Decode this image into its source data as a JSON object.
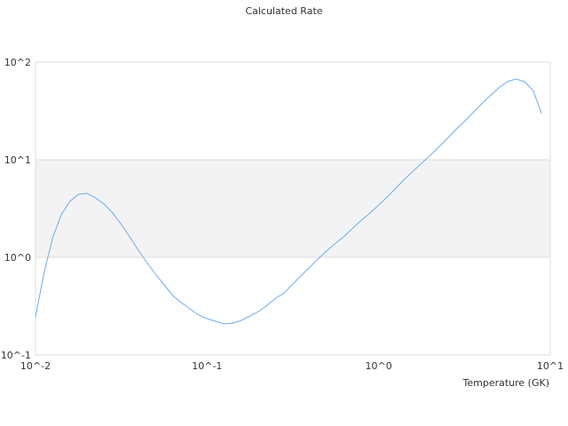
{
  "chart_data": {
    "type": "line",
    "title": "Calculated Rate",
    "xlabel": "Temperature (GK)",
    "ylabel": "",
    "xscale": "log",
    "yscale": "log",
    "xlim": [
      0.01,
      10
    ],
    "ylim": [
      0.1,
      100
    ],
    "xticks": [
      {
        "v": 0.01,
        "label": "10^-2"
      },
      {
        "v": 0.1,
        "label": "10^-1"
      },
      {
        "v": 1,
        "label": "10^0"
      },
      {
        "v": 10,
        "label": "10^1"
      }
    ],
    "yticks": [
      {
        "v": 0.1,
        "label": "10^-1"
      },
      {
        "v": 1,
        "label": "10^0"
      },
      {
        "v": 10,
        "label": "10^1"
      },
      {
        "v": 100,
        "label": "10^2"
      }
    ],
    "grid": true,
    "shaded_band": [
      1,
      10
    ],
    "colors": {
      "line": "#6aaef0",
      "band": "#f3f3f3",
      "grid": "#dddddd"
    },
    "series": [
      {
        "x": [
          0.01,
          0.01122,
          0.01259,
          0.01413,
          0.01585,
          0.01778,
          0.01995,
          0.02239,
          0.02512,
          0.02818,
          0.03162,
          0.03548,
          0.03981,
          0.04467,
          0.05012,
          0.05623,
          0.0631,
          0.07079,
          0.07943,
          0.08913,
          0.1,
          0.1122,
          0.1259,
          0.1413,
          0.1585,
          0.1778,
          0.1995,
          0.2239,
          0.2512,
          0.2818,
          0.3162,
          0.3548,
          0.3981,
          0.4467,
          0.5012,
          0.5623,
          0.631,
          0.7079,
          0.7943,
          0.8913,
          1,
          1.122,
          1.259,
          1.413,
          1.585,
          1.778,
          1.995,
          2.239,
          2.512,
          2.818,
          3.162,
          3.548,
          3.981,
          4.467,
          5.012,
          5.623,
          6.31,
          7.079,
          7.943,
          8.913
        ],
        "y": [
          0.246,
          0.7,
          1.585,
          2.73,
          3.74,
          4.42,
          4.52,
          4.06,
          3.51,
          2.85,
          2.17,
          1.62,
          1.18,
          0.882,
          0.672,
          0.523,
          0.406,
          0.344,
          0.297,
          0.257,
          0.236,
          0.221,
          0.208,
          0.212,
          0.226,
          0.251,
          0.279,
          0.323,
          0.382,
          0.433,
          0.534,
          0.658,
          0.794,
          0.979,
          1.18,
          1.4,
          1.65,
          2.0,
          2.41,
          2.85,
          3.44,
          4.15,
          5.12,
          6.31,
          7.62,
          9.2,
          11.1,
          13.4,
          16.5,
          20.4,
          24.6,
          30.3,
          37.4,
          45.2,
          54.5,
          63.1,
          67.2,
          63.1,
          51.2,
          29.7
        ]
      }
    ]
  }
}
